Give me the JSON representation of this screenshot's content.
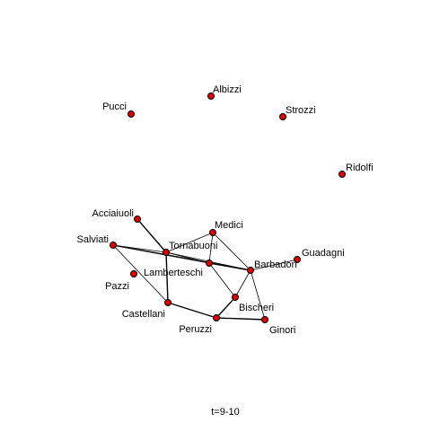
{
  "caption": "t=9-10",
  "colors": {
    "node_fill": "#e00000",
    "node_stroke": "#000000",
    "edge": "#000000",
    "background": "#ffffff"
  },
  "nodes": [
    {
      "id": "Pucci",
      "label": "Pucci"
    },
    {
      "id": "Albizzi",
      "label": "Albizzi"
    },
    {
      "id": "Strozzi",
      "label": "Strozzi"
    },
    {
      "id": "Ridolfi",
      "label": "Ridolfi"
    },
    {
      "id": "Acciaiuoli",
      "label": "Acciaiuoli"
    },
    {
      "id": "Medici",
      "label": "Medici"
    },
    {
      "id": "Salviati",
      "label": "Salviati"
    },
    {
      "id": "Tornabuoni",
      "label": "Tornabuoni"
    },
    {
      "id": "Guadagni",
      "label": "Guadagni"
    },
    {
      "id": "Barbadori",
      "label": "Barbadori"
    },
    {
      "id": "Lamberteschi",
      "label": "Lamberteschi"
    },
    {
      "id": "Pazzi",
      "label": "Pazzi"
    },
    {
      "id": "Bischeri",
      "label": "Bischeri"
    },
    {
      "id": "Castellani",
      "label": "Castellani"
    },
    {
      "id": "Peruzzi",
      "label": "Peruzzi"
    },
    {
      "id": "Ginori",
      "label": "Ginori"
    }
  ],
  "edges": [
    {
      "source": "Acciaiuoli",
      "target": "Tornabuoni",
      "weight": 2
    },
    {
      "source": "Salviati",
      "target": "Tornabuoni",
      "weight": 1
    },
    {
      "source": "Salviati",
      "target": "Barbadori",
      "weight": 2
    },
    {
      "source": "Salviati",
      "target": "Lamberteschi",
      "weight": 1
    },
    {
      "source": "Salviati",
      "target": "Castellani",
      "weight": 1
    },
    {
      "source": "Medici",
      "target": "Tornabuoni",
      "weight": 1
    },
    {
      "source": "Medici",
      "target": "Barbadori",
      "weight": 1
    },
    {
      "source": "Medici",
      "target": "Lamberteschi",
      "weight": 1
    },
    {
      "source": "Tornabuoni",
      "target": "Lamberteschi",
      "weight": 1
    },
    {
      "source": "Tornabuoni",
      "target": "Barbadori",
      "weight": 1
    },
    {
      "source": "Tornabuoni",
      "target": "Castellani",
      "weight": 2
    },
    {
      "source": "Lamberteschi",
      "target": "Barbadori",
      "weight": 2
    },
    {
      "source": "Lamberteschi",
      "target": "Bischeri",
      "weight": 1
    },
    {
      "source": "Barbadori",
      "target": "Guadagni",
      "weight": 1
    },
    {
      "source": "Barbadori",
      "target": "Bischeri",
      "weight": 1
    },
    {
      "source": "Barbadori",
      "target": "Ginori",
      "weight": 1
    },
    {
      "source": "Bischeri",
      "target": "Peruzzi",
      "weight": 2
    },
    {
      "source": "Castellani",
      "target": "Peruzzi",
      "weight": 2
    },
    {
      "source": "Peruzzi",
      "target": "Ginori",
      "weight": 2
    }
  ]
}
